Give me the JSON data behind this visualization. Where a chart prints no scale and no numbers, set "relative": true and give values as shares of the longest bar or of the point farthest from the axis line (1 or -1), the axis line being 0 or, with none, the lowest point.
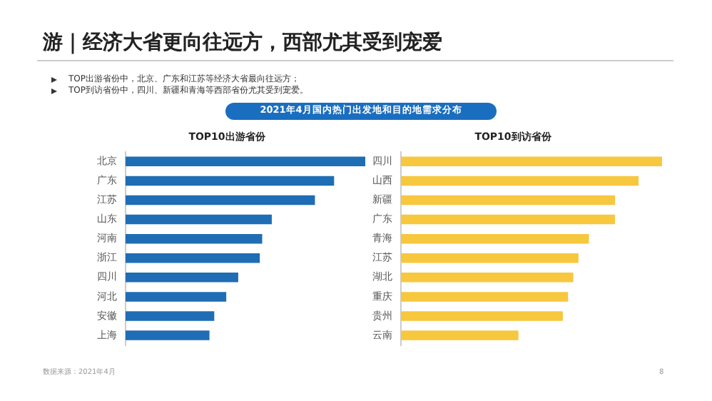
{
  "chart_data": [
    {
      "type": "bar",
      "orientation": "horizontal",
      "relative": true,
      "title": "TOP10出游省份",
      "categories": [
        "北京",
        "广东",
        "江苏",
        "山东",
        "河南",
        "浙江",
        "四川",
        "河北",
        "安徽",
        "上海"
      ],
      "values": [
        1,
        0.87,
        0.79,
        0.61,
        0.57,
        0.56,
        0.47,
        0.42,
        0.37,
        0.35
      ],
      "color": "#1f6db5",
      "grid": false,
      "legend": false,
      "annotations": [
        "游｜经济大省更向往远方，西部尤其受到宠爱",
        "TOP出游省份中，北京、广东和江苏等经济大省最向往远方；",
        "TOP到访省份中，四川、新疆和青海等西部省份尤其受到宠爱。",
        "2021年4月国内热门出发地和目的地需求分布",
        "数据来源：2021年4月",
        "8"
      ]
    },
    {
      "type": "bar",
      "orientation": "horizontal",
      "relative": true,
      "title": "TOP10到访省份",
      "categories": [
        "四川",
        "山西",
        "新疆",
        "广东",
        "青海",
        "江苏",
        "湖北",
        "重庆",
        "贵州",
        "云南"
      ],
      "values": [
        1,
        0.91,
        0.82,
        0.82,
        0.72,
        0.68,
        0.66,
        0.64,
        0.62,
        0.45
      ],
      "color": "#f7c73e",
      "grid": false,
      "legend": false
    }
  ]
}
